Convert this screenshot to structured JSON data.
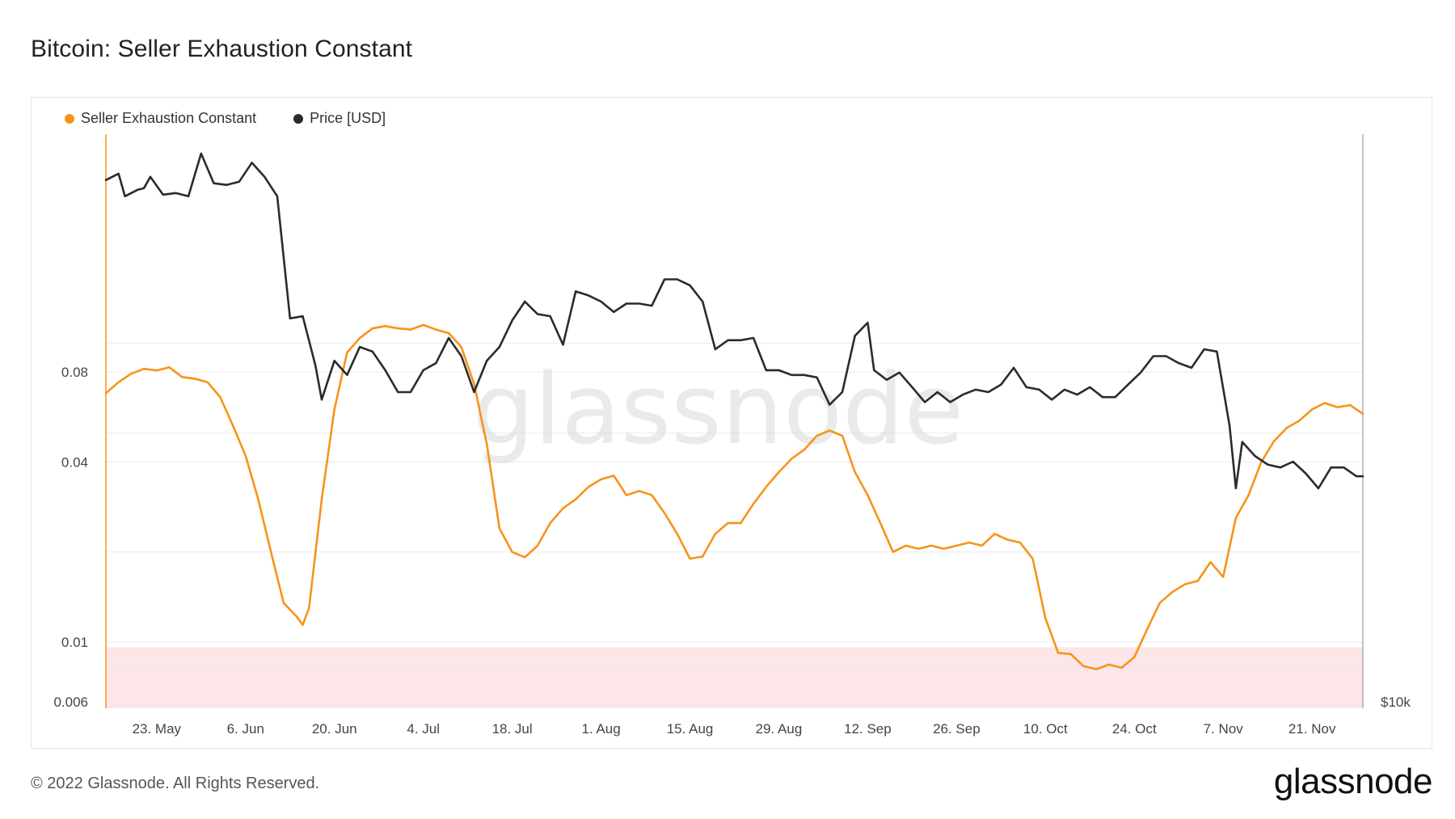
{
  "header": {
    "title": "Bitcoin: Seller Exhaustion Constant"
  },
  "legend": [
    {
      "label": "Seller Exhaustion Constant",
      "color": "#f7931a"
    },
    {
      "label": "Price [USD]",
      "color": "#2b2b2b"
    }
  ],
  "footer": {
    "copyright": "© 2022 Glassnode. All Rights Reserved.",
    "brand": "glassnode"
  },
  "watermark": "glassnode",
  "colors": {
    "sec": "#f7931a",
    "price": "#2b2b2b",
    "zone": "#fde6e8"
  },
  "chart_data": {
    "type": "line",
    "title": "Bitcoin: Seller Exhaustion Constant",
    "x_start": "2022-05-15",
    "x_end": "2022-11-29",
    "x_ticks": [
      "23. May",
      "6. Jun",
      "20. Jun",
      "4. Jul",
      "18. Jul",
      "1. Aug",
      "15. Aug",
      "29. Aug",
      "12. Sep",
      "26. Sep",
      "10. Oct",
      "24. Oct",
      "7. Nov",
      "21. Nov"
    ],
    "y_left": {
      "scale": "log",
      "range": [
        0.006,
        0.5
      ],
      "tick_labels": [
        "0.08",
        "0.04",
        "0.01",
        "0.006"
      ],
      "tick_values": [
        0.08,
        0.04,
        0.01,
        0.006
      ]
    },
    "y_right": {
      "scale": "log",
      "range": [
        10000,
        33000
      ],
      "tick_labels": [
        "$10k"
      ],
      "tick_values": [
        10000
      ]
    },
    "highlight_band": {
      "axis": "left",
      "from": 0.006,
      "to": 0.0096
    },
    "series": [
      {
        "name": "Seller Exhaustion Constant",
        "axis": "left",
        "color": "#f7931a",
        "points": [
          [
            "2022-05-15",
            0.068
          ],
          [
            "2022-05-17",
            0.074
          ],
          [
            "2022-05-19",
            0.079
          ],
          [
            "2022-05-21",
            0.082
          ],
          [
            "2022-05-23",
            0.081
          ],
          [
            "2022-05-25",
            0.083
          ],
          [
            "2022-05-27",
            0.077
          ],
          [
            "2022-05-29",
            0.076
          ],
          [
            "2022-05-31",
            0.074
          ],
          [
            "2022-06-02",
            0.066
          ],
          [
            "2022-06-04",
            0.053
          ],
          [
            "2022-06-06",
            0.042
          ],
          [
            "2022-06-08",
            0.03
          ],
          [
            "2022-06-10",
            0.02
          ],
          [
            "2022-06-12",
            0.0135
          ],
          [
            "2022-06-14",
            0.0122
          ],
          [
            "2022-06-15",
            0.0114
          ],
          [
            "2022-06-16",
            0.013
          ],
          [
            "2022-06-18",
            0.03
          ],
          [
            "2022-06-20",
            0.06
          ],
          [
            "2022-06-22",
            0.093
          ],
          [
            "2022-06-24",
            0.104
          ],
          [
            "2022-06-26",
            0.112
          ],
          [
            "2022-06-28",
            0.114
          ],
          [
            "2022-06-30",
            0.112
          ],
          [
            "2022-07-02",
            0.111
          ],
          [
            "2022-07-04",
            0.115
          ],
          [
            "2022-07-06",
            0.111
          ],
          [
            "2022-07-08",
            0.108
          ],
          [
            "2022-07-10",
            0.097
          ],
          [
            "2022-07-12",
            0.073
          ],
          [
            "2022-07-14",
            0.046
          ],
          [
            "2022-07-16",
            0.024
          ],
          [
            "2022-07-18",
            0.02
          ],
          [
            "2022-07-20",
            0.0192
          ],
          [
            "2022-07-22",
            0.021
          ],
          [
            "2022-07-24",
            0.025
          ],
          [
            "2022-07-26",
            0.028
          ],
          [
            "2022-07-28",
            0.03
          ],
          [
            "2022-07-30",
            0.033
          ],
          [
            "2022-08-01",
            0.035
          ],
          [
            "2022-08-03",
            0.036
          ],
          [
            "2022-08-05",
            0.031
          ],
          [
            "2022-08-07",
            0.032
          ],
          [
            "2022-08-09",
            0.031
          ],
          [
            "2022-08-11",
            0.027
          ],
          [
            "2022-08-13",
            0.023
          ],
          [
            "2022-08-15",
            0.019
          ],
          [
            "2022-08-17",
            0.0193
          ],
          [
            "2022-08-19",
            0.023
          ],
          [
            "2022-08-21",
            0.025
          ],
          [
            "2022-08-23",
            0.025
          ],
          [
            "2022-08-25",
            0.029
          ],
          [
            "2022-08-27",
            0.033
          ],
          [
            "2022-08-29",
            0.037
          ],
          [
            "2022-08-31",
            0.041
          ],
          [
            "2022-09-02",
            0.044
          ],
          [
            "2022-09-04",
            0.049
          ],
          [
            "2022-09-06",
            0.051
          ],
          [
            "2022-09-08",
            0.049
          ],
          [
            "2022-09-10",
            0.037
          ],
          [
            "2022-09-12",
            0.031
          ],
          [
            "2022-09-14",
            0.025
          ],
          [
            "2022-09-16",
            0.02
          ],
          [
            "2022-09-18",
            0.021
          ],
          [
            "2022-09-20",
            0.0205
          ],
          [
            "2022-09-22",
            0.021
          ],
          [
            "2022-09-24",
            0.0205
          ],
          [
            "2022-09-26",
            0.021
          ],
          [
            "2022-09-28",
            0.0215
          ],
          [
            "2022-09-30",
            0.021
          ],
          [
            "2022-10-02",
            0.023
          ],
          [
            "2022-10-04",
            0.022
          ],
          [
            "2022-10-06",
            0.0215
          ],
          [
            "2022-10-08",
            0.019
          ],
          [
            "2022-10-10",
            0.012
          ],
          [
            "2022-10-12",
            0.0092
          ],
          [
            "2022-10-14",
            0.0091
          ],
          [
            "2022-10-16",
            0.0083
          ],
          [
            "2022-10-18",
            0.0081
          ],
          [
            "2022-10-20",
            0.0084
          ],
          [
            "2022-10-22",
            0.0082
          ],
          [
            "2022-10-24",
            0.0089
          ],
          [
            "2022-10-26",
            0.011
          ],
          [
            "2022-10-28",
            0.0135
          ],
          [
            "2022-10-30",
            0.0147
          ],
          [
            "2022-11-01",
            0.0156
          ],
          [
            "2022-11-03",
            0.016
          ],
          [
            "2022-11-05",
            0.0185
          ],
          [
            "2022-11-07",
            0.0165
          ],
          [
            "2022-11-09",
            0.026
          ],
          [
            "2022-11-11",
            0.031
          ],
          [
            "2022-11-13",
            0.04
          ],
          [
            "2022-11-15",
            0.047
          ],
          [
            "2022-11-17",
            0.052
          ],
          [
            "2022-11-19",
            0.055
          ],
          [
            "2022-11-21",
            0.06
          ],
          [
            "2022-11-23",
            0.063
          ],
          [
            "2022-11-25",
            0.061
          ],
          [
            "2022-11-27",
            0.062
          ],
          [
            "2022-11-29",
            0.058
          ]
        ]
      },
      {
        "name": "Price [USD]",
        "axis": "right",
        "color": "#2b2b2b",
        "points": [
          [
            "2022-05-15",
            30000
          ],
          [
            "2022-05-17",
            30400
          ],
          [
            "2022-05-18",
            29000
          ],
          [
            "2022-05-20",
            29400
          ],
          [
            "2022-05-21",
            29500
          ],
          [
            "2022-05-22",
            30200
          ],
          [
            "2022-05-24",
            29100
          ],
          [
            "2022-05-26",
            29200
          ],
          [
            "2022-05-28",
            29000
          ],
          [
            "2022-05-30",
            31700
          ],
          [
            "2022-06-01",
            29800
          ],
          [
            "2022-06-03",
            29700
          ],
          [
            "2022-06-05",
            29900
          ],
          [
            "2022-06-07",
            31100
          ],
          [
            "2022-06-09",
            30200
          ],
          [
            "2022-06-11",
            29000
          ],
          [
            "2022-06-13",
            22500
          ],
          [
            "2022-06-15",
            22600
          ],
          [
            "2022-06-17",
            20400
          ],
          [
            "2022-06-18",
            19000
          ],
          [
            "2022-06-20",
            20600
          ],
          [
            "2022-06-22",
            20000
          ],
          [
            "2022-06-24",
            21200
          ],
          [
            "2022-06-26",
            21000
          ],
          [
            "2022-06-28",
            20200
          ],
          [
            "2022-06-30",
            19300
          ],
          [
            "2022-07-02",
            19300
          ],
          [
            "2022-07-04",
            20200
          ],
          [
            "2022-07-06",
            20500
          ],
          [
            "2022-07-08",
            21600
          ],
          [
            "2022-07-10",
            20800
          ],
          [
            "2022-07-12",
            19300
          ],
          [
            "2022-07-14",
            20600
          ],
          [
            "2022-07-16",
            21200
          ],
          [
            "2022-07-18",
            22400
          ],
          [
            "2022-07-20",
            23300
          ],
          [
            "2022-07-22",
            22700
          ],
          [
            "2022-07-24",
            22600
          ],
          [
            "2022-07-26",
            21300
          ],
          [
            "2022-07-28",
            23800
          ],
          [
            "2022-07-30",
            23600
          ],
          [
            "2022-08-01",
            23300
          ],
          [
            "2022-08-03",
            22800
          ],
          [
            "2022-08-05",
            23200
          ],
          [
            "2022-08-07",
            23200
          ],
          [
            "2022-08-09",
            23100
          ],
          [
            "2022-08-11",
            24400
          ],
          [
            "2022-08-13",
            24400
          ],
          [
            "2022-08-15",
            24100
          ],
          [
            "2022-08-17",
            23300
          ],
          [
            "2022-08-19",
            21100
          ],
          [
            "2022-08-21",
            21500
          ],
          [
            "2022-08-23",
            21500
          ],
          [
            "2022-08-25",
            21600
          ],
          [
            "2022-08-27",
            20200
          ],
          [
            "2022-08-29",
            20200
          ],
          [
            "2022-08-31",
            20000
          ],
          [
            "2022-09-02",
            20000
          ],
          [
            "2022-09-04",
            19900
          ],
          [
            "2022-09-06",
            18800
          ],
          [
            "2022-09-08",
            19300
          ],
          [
            "2022-09-10",
            21700
          ],
          [
            "2022-09-12",
            22300
          ],
          [
            "2022-09-13",
            20200
          ],
          [
            "2022-09-15",
            19800
          ],
          [
            "2022-09-17",
            20100
          ],
          [
            "2022-09-19",
            19500
          ],
          [
            "2022-09-21",
            18900
          ],
          [
            "2022-09-23",
            19300
          ],
          [
            "2022-09-25",
            18900
          ],
          [
            "2022-09-27",
            19200
          ],
          [
            "2022-09-29",
            19400
          ],
          [
            "2022-10-01",
            19300
          ],
          [
            "2022-10-03",
            19600
          ],
          [
            "2022-10-05",
            20300
          ],
          [
            "2022-10-07",
            19500
          ],
          [
            "2022-10-09",
            19400
          ],
          [
            "2022-10-11",
            19000
          ],
          [
            "2022-10-13",
            19400
          ],
          [
            "2022-10-15",
            19200
          ],
          [
            "2022-10-17",
            19500
          ],
          [
            "2022-10-19",
            19100
          ],
          [
            "2022-10-21",
            19100
          ],
          [
            "2022-10-23",
            19600
          ],
          [
            "2022-10-25",
            20100
          ],
          [
            "2022-10-27",
            20800
          ],
          [
            "2022-10-29",
            20800
          ],
          [
            "2022-10-31",
            20500
          ],
          [
            "2022-11-02",
            20300
          ],
          [
            "2022-11-04",
            21100
          ],
          [
            "2022-11-06",
            21000
          ],
          [
            "2022-11-08",
            18000
          ],
          [
            "2022-11-09",
            15800
          ],
          [
            "2022-11-10",
            17400
          ],
          [
            "2022-11-12",
            16900
          ],
          [
            "2022-11-14",
            16600
          ],
          [
            "2022-11-16",
            16500
          ],
          [
            "2022-11-18",
            16700
          ],
          [
            "2022-11-20",
            16300
          ],
          [
            "2022-11-22",
            15800
          ],
          [
            "2022-11-24",
            16500
          ],
          [
            "2022-11-26",
            16500
          ],
          [
            "2022-11-28",
            16200
          ],
          [
            "2022-11-29",
            16200
          ]
        ]
      }
    ]
  }
}
